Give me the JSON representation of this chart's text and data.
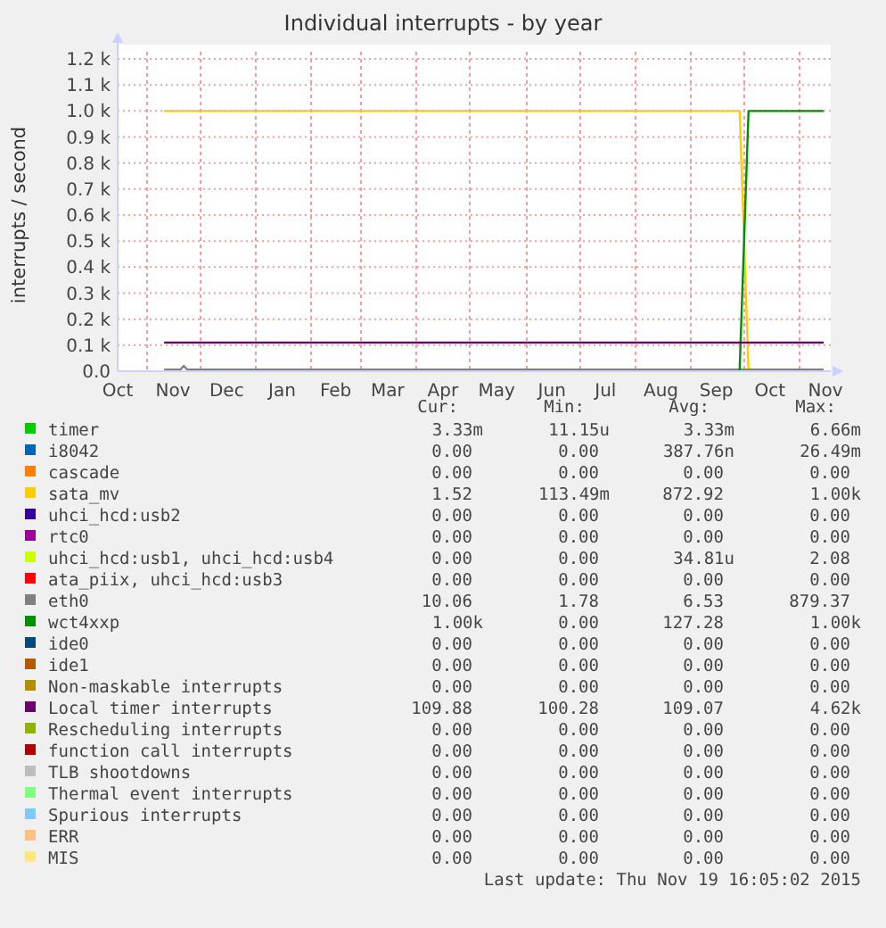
{
  "chart_data": {
    "type": "line",
    "title": "Individual interrupts - by year",
    "ylabel": "interrupts / second",
    "xlim": [
      "2014-10-16",
      "2015-11-19"
    ],
    "xticks": [
      {
        "value": "2014-10-16",
        "label": "Oct"
      },
      {
        "value": "2014-11-01",
        "label": null
      },
      {
        "value": "2014-11-16",
        "label": "Nov"
      },
      {
        "value": "2014-12-01",
        "label": null
      },
      {
        "value": "2014-12-16",
        "label": "Dec"
      },
      {
        "value": "2015-01-01",
        "label": null
      },
      {
        "value": "2015-01-16",
        "label": "Jan"
      },
      {
        "value": "2015-02-01",
        "label": null
      },
      {
        "value": "2015-02-15",
        "label": "Feb"
      },
      {
        "value": "2015-03-01",
        "label": null
      },
      {
        "value": "2015-03-16",
        "label": "Mar"
      },
      {
        "value": "2015-04-01",
        "label": null
      },
      {
        "value": "2015-04-16",
        "label": "Apr"
      },
      {
        "value": "2015-05-01",
        "label": null
      },
      {
        "value": "2015-05-16",
        "label": "May"
      },
      {
        "value": "2015-06-01",
        "label": null
      },
      {
        "value": "2015-06-16",
        "label": "Jun"
      },
      {
        "value": "2015-07-01",
        "label": null
      },
      {
        "value": "2015-07-16",
        "label": "Jul"
      },
      {
        "value": "2015-08-01",
        "label": null
      },
      {
        "value": "2015-08-16",
        "label": "Aug"
      },
      {
        "value": "2015-09-01",
        "label": null
      },
      {
        "value": "2015-09-16",
        "label": "Sep"
      },
      {
        "value": "2015-10-01",
        "label": null
      },
      {
        "value": "2015-10-16",
        "label": "Oct"
      },
      {
        "value": "2015-11-01",
        "label": null
      },
      {
        "value": "2015-11-16",
        "label": "Nov"
      }
    ],
    "ylim": [
      0,
      1200
    ],
    "yticks": [
      {
        "value": 0,
        "label": "0.0"
      },
      {
        "value": 100,
        "label": "0.1 k"
      },
      {
        "value": 200,
        "label": "0.2 k"
      },
      {
        "value": 300,
        "label": "0.3 k"
      },
      {
        "value": 400,
        "label": "0.4 k"
      },
      {
        "value": 500,
        "label": "0.5 k"
      },
      {
        "value": 600,
        "label": "0.6 k"
      },
      {
        "value": 700,
        "label": "0.7 k"
      },
      {
        "value": 800,
        "label": "0.8 k"
      },
      {
        "value": 900,
        "label": "0.9 k"
      },
      {
        "value": 1000,
        "label": "1.0 k"
      },
      {
        "value": 1100,
        "label": "1.1 k"
      },
      {
        "value": 1200,
        "label": "1.2 k"
      }
    ],
    "grid": true,
    "legend": "bottom",
    "series": [
      {
        "name": "timer",
        "color": "#00cc00"
      },
      {
        "name": "i8042",
        "color": "#0066b3"
      },
      {
        "name": "cascade",
        "color": "#ff8000"
      },
      {
        "name": "sata_mv",
        "color": "#ffcc00",
        "x": [
          "2014-11-11",
          "2015-06-01",
          "2015-09-29",
          "2015-10-04"
        ],
        "values": [
          1000,
          1000,
          1000,
          0
        ]
      },
      {
        "name": "uhci_hcd:usb2",
        "color": "#330099"
      },
      {
        "name": "rtc0",
        "color": "#990099"
      },
      {
        "name": "uhci_hcd:usb1, uhci_hcd:usb4",
        "color": "#ccff00"
      },
      {
        "name": "ata_piix, uhci_hcd:usb3",
        "color": "#ff0000"
      },
      {
        "name": "eth0",
        "color": "#808080",
        "x": [
          "2014-11-11",
          "2014-11-20",
          "2014-11-22",
          "2014-11-24",
          "2015-05-01",
          "2015-09-20",
          "2015-11-15"
        ],
        "values": [
          6,
          6,
          20,
          6,
          6,
          6,
          6
        ]
      },
      {
        "name": "wct4xxp",
        "color": "#008f00",
        "x": [
          "2015-09-29",
          "2015-10-04",
          "2015-11-01",
          "2015-11-15"
        ],
        "values": [
          0,
          1000,
          1000,
          1000
        ]
      },
      {
        "name": "ide0",
        "color": "#00487d"
      },
      {
        "name": "ide1",
        "color": "#b35a00"
      },
      {
        "name": "Non-maskable interrupts",
        "color": "#b38f00"
      },
      {
        "name": "Local timer interrupts",
        "color": "#6b006b",
        "x": [
          "2014-11-11",
          "2015-05-01",
          "2015-11-15"
        ],
        "values": [
          110,
          110,
          110
        ]
      },
      {
        "name": "Rescheduling interrupts",
        "color": "#8fb300"
      },
      {
        "name": "function call interrupts",
        "color": "#b30000"
      },
      {
        "name": "TLB shootdowns",
        "color": "#bebebe"
      },
      {
        "name": "Thermal event interrupts",
        "color": "#80ff80"
      },
      {
        "name": "Spurious interrupts",
        "color": "#80c9ff"
      },
      {
        "name": "ERR",
        "color": "#ffc080"
      },
      {
        "name": "MIS",
        "color": "#ffe680"
      }
    ],
    "annotations": [
      "Cur:",
      "Min:",
      "Avg:",
      "Max:",
      "3.33m",
      "11.15u",
      "3.33m",
      "6.66m",
      "0.00",
      "0.00",
      "387.76n",
      "26.49m",
      "0.00",
      "0.00",
      "0.00",
      "0.00",
      "1.52",
      "113.49m",
      "872.92",
      "1.00k",
      "0.00",
      "0.00",
      "0.00",
      "0.00",
      "0.00",
      "0.00",
      "0.00",
      "0.00",
      "0.00",
      "0.00",
      "34.81u",
      "2.08",
      "0.00",
      "0.00",
      "0.00",
      "0.00",
      "10.06",
      "1.78",
      "6.53",
      "879.37",
      "1.00k",
      "0.00",
      "127.28",
      "1.00k",
      "0.00",
      "0.00",
      "0.00",
      "0.00",
      "0.00",
      "0.00",
      "0.00",
      "0.00",
      "0.00",
      "0.00",
      "0.00",
      "0.00",
      "109.88",
      "100.28",
      "109.07",
      "4.62k",
      "0.00",
      "0.00",
      "0.00",
      "0.00",
      "0.00",
      "0.00",
      "0.00",
      "0.00",
      "0.00",
      "0.00",
      "0.00",
      "0.00",
      "0.00",
      "0.00",
      "0.00",
      "0.00",
      "0.00",
      "0.00",
      "0.00",
      "0.00",
      "0.00",
      "0.00",
      "0.00",
      "0.00",
      "0.00",
      "0.00",
      "0.00",
      "0.00",
      "Last update: Thu Nov 19 16:05:02 2015"
    ]
  }
}
